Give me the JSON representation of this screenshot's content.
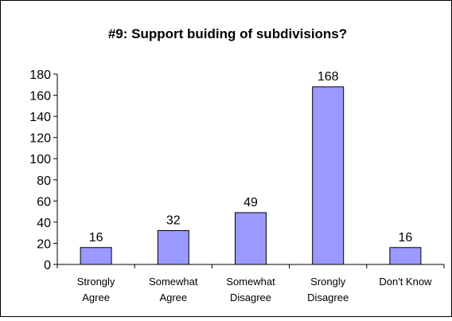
{
  "chart_data": {
    "type": "bar",
    "title": "#9: Support buiding of subdivisions?",
    "categories": [
      [
        "Strongly",
        "Agree"
      ],
      [
        "Somewhat",
        "Agree"
      ],
      [
        "Somewhat",
        "Disagree"
      ],
      [
        "Srongly",
        "Disagree"
      ],
      [
        "Don't Know"
      ]
    ],
    "values": [
      16,
      32,
      49,
      168,
      16
    ],
    "data_labels": [
      "16",
      "32",
      "49",
      "168",
      "16"
    ],
    "ylim": [
      0,
      180
    ],
    "yticks": [
      "0",
      "20",
      "40",
      "60",
      "80",
      "100",
      "120",
      "140",
      "160",
      "180"
    ],
    "xlabel": "",
    "ylabel": "",
    "grid": false,
    "legend": "none",
    "colors": {
      "bar_fill": "#9999ff",
      "bar_stroke": "#000000",
      "axis": "#000000",
      "frame": "#000000"
    }
  }
}
